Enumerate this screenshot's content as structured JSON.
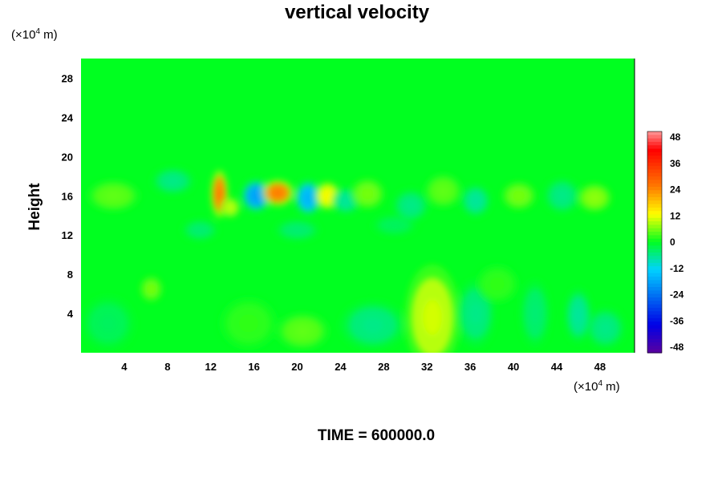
{
  "chart_data": {
    "type": "heatmap",
    "title": "vertical velocity",
    "ylabel": "Height",
    "xlabel": "",
    "x_unit": {
      "base": "(×10",
      "exp": "4",
      "tail": " m)"
    },
    "y_unit": {
      "base": "(×10",
      "exp": "4",
      "tail": " m)"
    },
    "x_range": [
      0,
      51.2
    ],
    "y_range": [
      0,
      30
    ],
    "x_ticks": [
      4,
      8,
      12,
      16,
      20,
      24,
      28,
      32,
      36,
      40,
      44,
      48
    ],
    "y_ticks": [
      4,
      8,
      12,
      16,
      20,
      24,
      28
    ],
    "colorbar": {
      "ticks": [
        48,
        36,
        24,
        12,
        0,
        -12,
        -24,
        -36,
        -48
      ],
      "range": [
        -48,
        48
      ],
      "colors": {
        "neg_strong": "#5a00a0",
        "neg_mid": "#0000e6",
        "neg_light": "#00d2ff",
        "zero": "#00ff20",
        "pos_light": "#ffff00",
        "pos_mid": "#ff7a00",
        "pos_strong": "#ff0000",
        "pos_max": "#ff9a9a"
      }
    },
    "features": [
      {
        "x": 12.8,
        "y": 16.2,
        "value": 22,
        "sx": 0.6,
        "sy": 1.8
      },
      {
        "x": 13.8,
        "y": 14.8,
        "value": 8,
        "sx": 0.7,
        "sy": 0.8
      },
      {
        "x": 16.2,
        "y": 16.0,
        "value": -16,
        "sx": 1.0,
        "sy": 1.2
      },
      {
        "x": 18.2,
        "y": 16.3,
        "value": 22,
        "sx": 1.1,
        "sy": 1.0
      },
      {
        "x": 21.0,
        "y": 15.8,
        "value": -14,
        "sx": 0.9,
        "sy": 1.3
      },
      {
        "x": 22.8,
        "y": 16.0,
        "value": 11,
        "sx": 0.9,
        "sy": 1.1
      },
      {
        "x": 24.5,
        "y": 15.5,
        "value": -6,
        "sx": 1.0,
        "sy": 1.0
      },
      {
        "x": 26.5,
        "y": 16.2,
        "value": 5,
        "sx": 1.2,
        "sy": 1.2
      },
      {
        "x": 30.5,
        "y": 15.0,
        "value": -5,
        "sx": 1.2,
        "sy": 1.2
      },
      {
        "x": 33.5,
        "y": 16.5,
        "value": 4,
        "sx": 1.3,
        "sy": 1.3
      },
      {
        "x": 36.5,
        "y": 15.5,
        "value": -6,
        "sx": 1.0,
        "sy": 1.2
      },
      {
        "x": 40.5,
        "y": 16.0,
        "value": 5,
        "sx": 1.2,
        "sy": 1.1
      },
      {
        "x": 44.5,
        "y": 16.0,
        "value": -5,
        "sx": 1.2,
        "sy": 1.3
      },
      {
        "x": 47.5,
        "y": 15.8,
        "value": 6,
        "sx": 1.2,
        "sy": 1.1
      },
      {
        "x": 8.5,
        "y": 17.5,
        "value": -5,
        "sx": 1.4,
        "sy": 1.0
      },
      {
        "x": 3.0,
        "y": 16.0,
        "value": 4,
        "sx": 1.8,
        "sy": 1.2
      },
      {
        "x": 11.0,
        "y": 12.5,
        "value": -4,
        "sx": 1.2,
        "sy": 0.8
      },
      {
        "x": 20.0,
        "y": 12.5,
        "value": -4,
        "sx": 1.5,
        "sy": 0.8
      },
      {
        "x": 29.0,
        "y": 13.0,
        "value": -3,
        "sx": 1.5,
        "sy": 0.8
      },
      {
        "x": 32.5,
        "y": 3.6,
        "value": 9,
        "sx": 1.9,
        "sy": 4.0
      },
      {
        "x": 27.0,
        "y": 2.8,
        "value": -5,
        "sx": 2.2,
        "sy": 1.8
      },
      {
        "x": 20.5,
        "y": 2.2,
        "value": 4,
        "sx": 1.8,
        "sy": 1.4
      },
      {
        "x": 36.5,
        "y": 4.0,
        "value": -5,
        "sx": 1.3,
        "sy": 2.5
      },
      {
        "x": 42.0,
        "y": 4.0,
        "value": -4,
        "sx": 1.0,
        "sy": 2.5
      },
      {
        "x": 46.0,
        "y": 3.8,
        "value": -6,
        "sx": 0.9,
        "sy": 2.0
      },
      {
        "x": 48.5,
        "y": 2.5,
        "value": -5,
        "sx": 1.3,
        "sy": 1.5
      },
      {
        "x": 6.5,
        "y": 6.5,
        "value": 5,
        "sx": 0.8,
        "sy": 1.0
      },
      {
        "x": 2.5,
        "y": 3.0,
        "value": -3,
        "sx": 1.8,
        "sy": 2.0
      },
      {
        "x": 15.5,
        "y": 3.0,
        "value": 2,
        "sx": 2.0,
        "sy": 2.0
      },
      {
        "x": 38.5,
        "y": 7.0,
        "value": 2,
        "sx": 1.5,
        "sy": 1.5
      }
    ]
  },
  "time_label": "TIME = 600000.0"
}
